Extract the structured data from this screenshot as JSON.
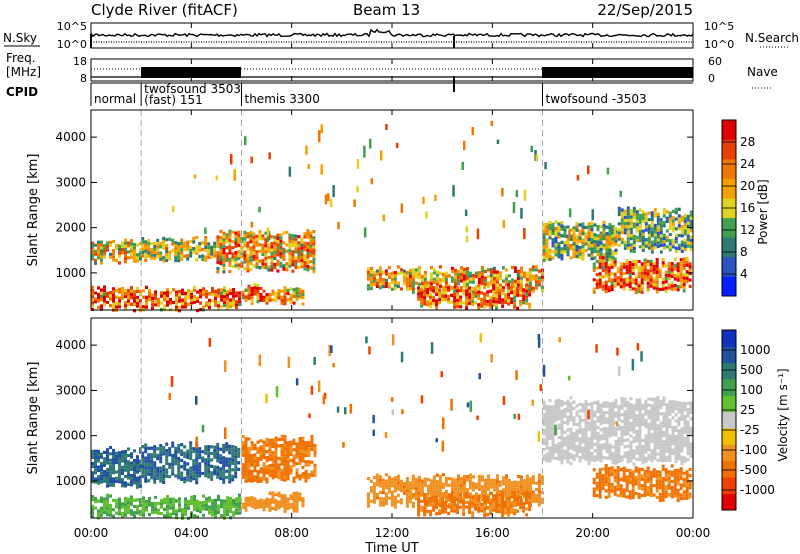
{
  "header": {
    "site": "Clyde River (fitACF)",
    "beam": "Beam 13",
    "date": "22/Sep/2015"
  },
  "noise_panel": {
    "left_label": "N.Sky",
    "right_label": "N.Search",
    "left_ticks": [
      "10^5",
      "10^0"
    ],
    "right_ticks": [
      "10^5",
      "10^0"
    ]
  },
  "freq_panel": {
    "left_label_1": "Freq.",
    "left_label_2": "[MHz]",
    "right_label": "Nave",
    "left_ticks": [
      "18",
      "8"
    ],
    "right_ticks": [
      "60",
      "0"
    ]
  },
  "cpid_panel": {
    "label": "CPID",
    "segments": [
      {
        "start": 0,
        "end": 2,
        "label": "normal",
        "label2": ""
      },
      {
        "start": 2,
        "end": 6,
        "label": "twofsound 3503",
        "label2": "(fast) 151"
      },
      {
        "start": 6,
        "end": 18,
        "label": "themis 3300",
        "label2": ""
      },
      {
        "start": 18,
        "end": 24,
        "label": "twofsound -3503",
        "label2": ""
      }
    ]
  },
  "axes": {
    "time_ticks": [
      "00:00",
      "04:00",
      "08:00",
      "12:00",
      "16:00",
      "20:00",
      "00:00"
    ],
    "xlabel": "Time UT",
    "ylabel": "Slant Range [km]",
    "range_ticks": [
      "1000",
      "2000",
      "3000",
      "4000"
    ]
  },
  "colorbars": {
    "power": {
      "title": "Power [dB]",
      "labels": [
        "4",
        "8",
        "12",
        "16",
        "20",
        "24",
        "28"
      ],
      "colors": [
        "#0020ff",
        "#2a55c0",
        "#2e7a70",
        "#40a050",
        "#e0d020",
        "#f5a000",
        "#f07800",
        "#e84000",
        "#e00000"
      ]
    },
    "velocity": {
      "title": "Velocity [m s⁻¹]",
      "labels": [
        "1000",
        "500",
        "100",
        "25",
        "-25",
        "-100",
        "-500",
        "-1000"
      ],
      "colors": [
        "#1030c0",
        "#2050a0",
        "#2e7a70",
        "#40a050",
        "#60c030",
        "#c8c8c8",
        "#f0c000",
        "#f09020",
        "#f07000",
        "#f04000",
        "#e00000"
      ]
    }
  },
  "chart_data": [
    {
      "type": "heatmap",
      "title": "Power [dB]",
      "xlabel": "Time UT",
      "ylabel": "Slant Range [km]",
      "xlim": [
        0,
        24
      ],
      "ylim": [
        180,
        4600
      ],
      "mode_boundaries": [
        2,
        6,
        18
      ],
      "bands": [
        {
          "t0": 0.0,
          "t1": 2.0,
          "r0": 1250,
          "r1": 1700,
          "color_value": 18
        },
        {
          "t0": 2.0,
          "t1": 5.0,
          "r0": 1300,
          "r1": 1750,
          "color_value": 16
        },
        {
          "t0": 5.0,
          "t1": 9.0,
          "r0": 1050,
          "r1": 1900,
          "color_value": 20
        },
        {
          "t0": 0.0,
          "t1": 6.0,
          "r0": 200,
          "r1": 650,
          "color_value": 24
        },
        {
          "t0": 6.0,
          "t1": 8.5,
          "r0": 350,
          "r1": 700,
          "color_value": 22
        },
        {
          "t0": 11.0,
          "t1": 18.0,
          "r0": 600,
          "r1": 1100,
          "color_value": 20
        },
        {
          "t0": 13.0,
          "t1": 17.5,
          "r0": 250,
          "r1": 700,
          "color_value": 24
        },
        {
          "t0": 18.0,
          "t1": 21.0,
          "r0": 1300,
          "r1": 2100,
          "color_value": 14
        },
        {
          "t0": 20.0,
          "t1": 24.0,
          "r0": 600,
          "r1": 1300,
          "color_value": 24
        },
        {
          "t0": 21.0,
          "t1": 24.0,
          "r0": 1500,
          "r1": 2400,
          "color_value": 12
        }
      ]
    },
    {
      "type": "heatmap",
      "title": "Velocity [m s⁻¹]",
      "xlabel": "Time UT",
      "ylabel": "Slant Range [km]",
      "xlim": [
        0,
        24
      ],
      "ylim": [
        180,
        4600
      ],
      "mode_boundaries": [
        2,
        6,
        18
      ],
      "bands": [
        {
          "t0": 0.0,
          "t1": 2.0,
          "r0": 900,
          "r1": 1700,
          "color_value": 500
        },
        {
          "t0": 2.0,
          "t1": 6.0,
          "r0": 1000,
          "r1": 1800,
          "color_value": 500
        },
        {
          "t0": 6.0,
          "t1": 9.0,
          "r0": 1000,
          "r1": 1950,
          "color_value": -300
        },
        {
          "t0": 0.0,
          "t1": 6.0,
          "r0": 200,
          "r1": 650,
          "color_value": 100
        },
        {
          "t0": 6.0,
          "t1": 8.5,
          "r0": 350,
          "r1": 700,
          "color_value": -150
        },
        {
          "t0": 11.0,
          "t1": 18.0,
          "r0": 450,
          "r1": 1100,
          "color_value": -200
        },
        {
          "t0": 13.0,
          "t1": 17.5,
          "r0": 250,
          "r1": 700,
          "color_value": -300
        },
        {
          "t0": 18.0,
          "t1": 24.0,
          "r0": 1400,
          "r1": 2800,
          "color_value": 0
        },
        {
          "t0": 20.0,
          "t1": 24.0,
          "r0": 600,
          "r1": 1300,
          "color_value": -300
        }
      ]
    }
  ]
}
